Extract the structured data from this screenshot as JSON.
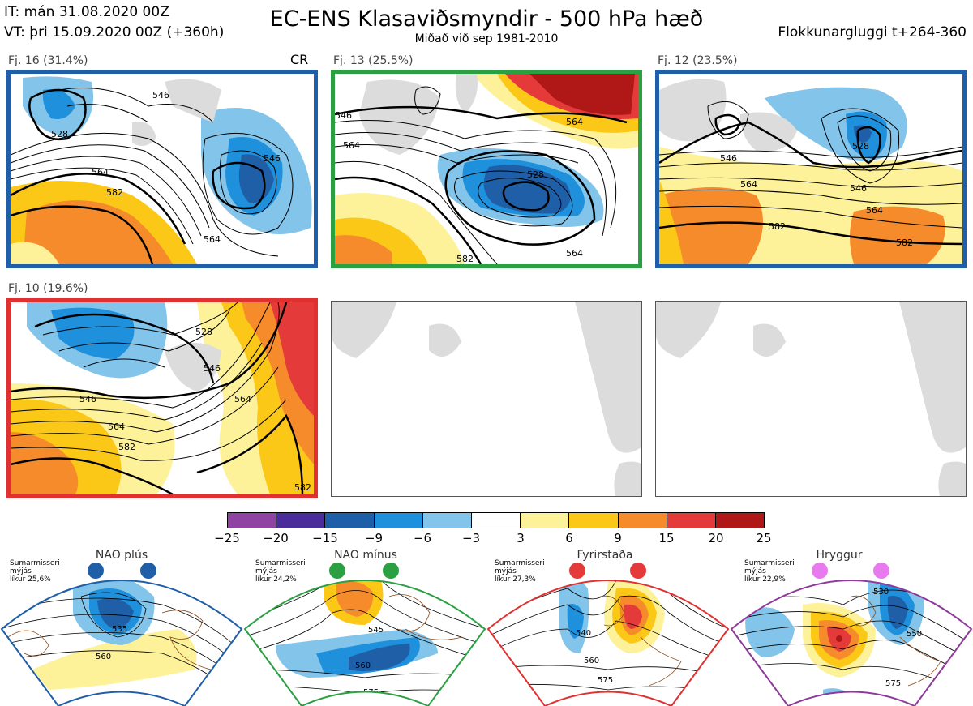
{
  "header": {
    "it": "IT: mán 31.08.2020 00Z",
    "vt": "VT: þri 15.09.2020 00Z  (+360h)",
    "title": "EC-ENS Klasaviðsmyndir - 500 hPa hæð",
    "subtitle": "Miðað við sep 1981-2010",
    "window": "Flokkunargluggi t+264-360"
  },
  "panels": [
    {
      "label": "Fj. 16 (31.4%)",
      "extra": "CR",
      "border": "#1f5fa8",
      "contours": [
        "546",
        "564",
        "582",
        "528",
        "546",
        "564"
      ]
    },
    {
      "label": "Fj. 13 (25.5%)",
      "border": "#2aa043",
      "contours": [
        "564",
        "546",
        "564",
        "528",
        "582",
        "564"
      ]
    },
    {
      "label": "Fj. 12 (23.5%)",
      "border": "#1f5fa8",
      "contours": [
        "546",
        "564",
        "582",
        "528",
        "546",
        "564",
        "582"
      ]
    },
    {
      "label": "Fj. 10 (19.6%)",
      "border": "#e03030",
      "contours": [
        "546",
        "564",
        "582",
        "528",
        "546",
        "564",
        "582"
      ]
    }
  ],
  "colorbar": {
    "colors": [
      "#8e44a0",
      "#4a2d9a",
      "#1f5fa8",
      "#1e90dc",
      "#82c4ea",
      "#ffffff",
      "#fdf29a",
      "#fbc818",
      "#f68b2b",
      "#e43a3a",
      "#b01818"
    ],
    "ticks": [
      "−25",
      "−20",
      "−15",
      "−9",
      "−6",
      "−3",
      "3",
      "6",
      "9",
      "15",
      "20",
      "25"
    ]
  },
  "regimes": [
    {
      "name": "NAO plús",
      "info1": "Sumarmisseri",
      "info2": "mýjás",
      "info3": "líkur 25,6%",
      "color": "#1f5fa8",
      "contours": [
        "535",
        "560"
      ]
    },
    {
      "name": "NAO mínus",
      "info1": "Sumarmisseri",
      "info2": "mýjás",
      "info3": "líkur 24,2%",
      "color": "#2aa043",
      "contours": [
        "545",
        "560",
        "575"
      ]
    },
    {
      "name": "Fyrirstaða",
      "info1": "Sumarmisseri",
      "info2": "mýjás",
      "info3": "líkur 27,3%",
      "color": "#e03030",
      "contours": [
        "540",
        "560",
        "575"
      ]
    },
    {
      "name": "Hryggur",
      "info1": "Sumarmisseri",
      "info2": "mýjás",
      "info3": "líkur 22,9%",
      "color": "#8e3a9a",
      "contours": [
        "530",
        "550",
        "575"
      ]
    }
  ]
}
